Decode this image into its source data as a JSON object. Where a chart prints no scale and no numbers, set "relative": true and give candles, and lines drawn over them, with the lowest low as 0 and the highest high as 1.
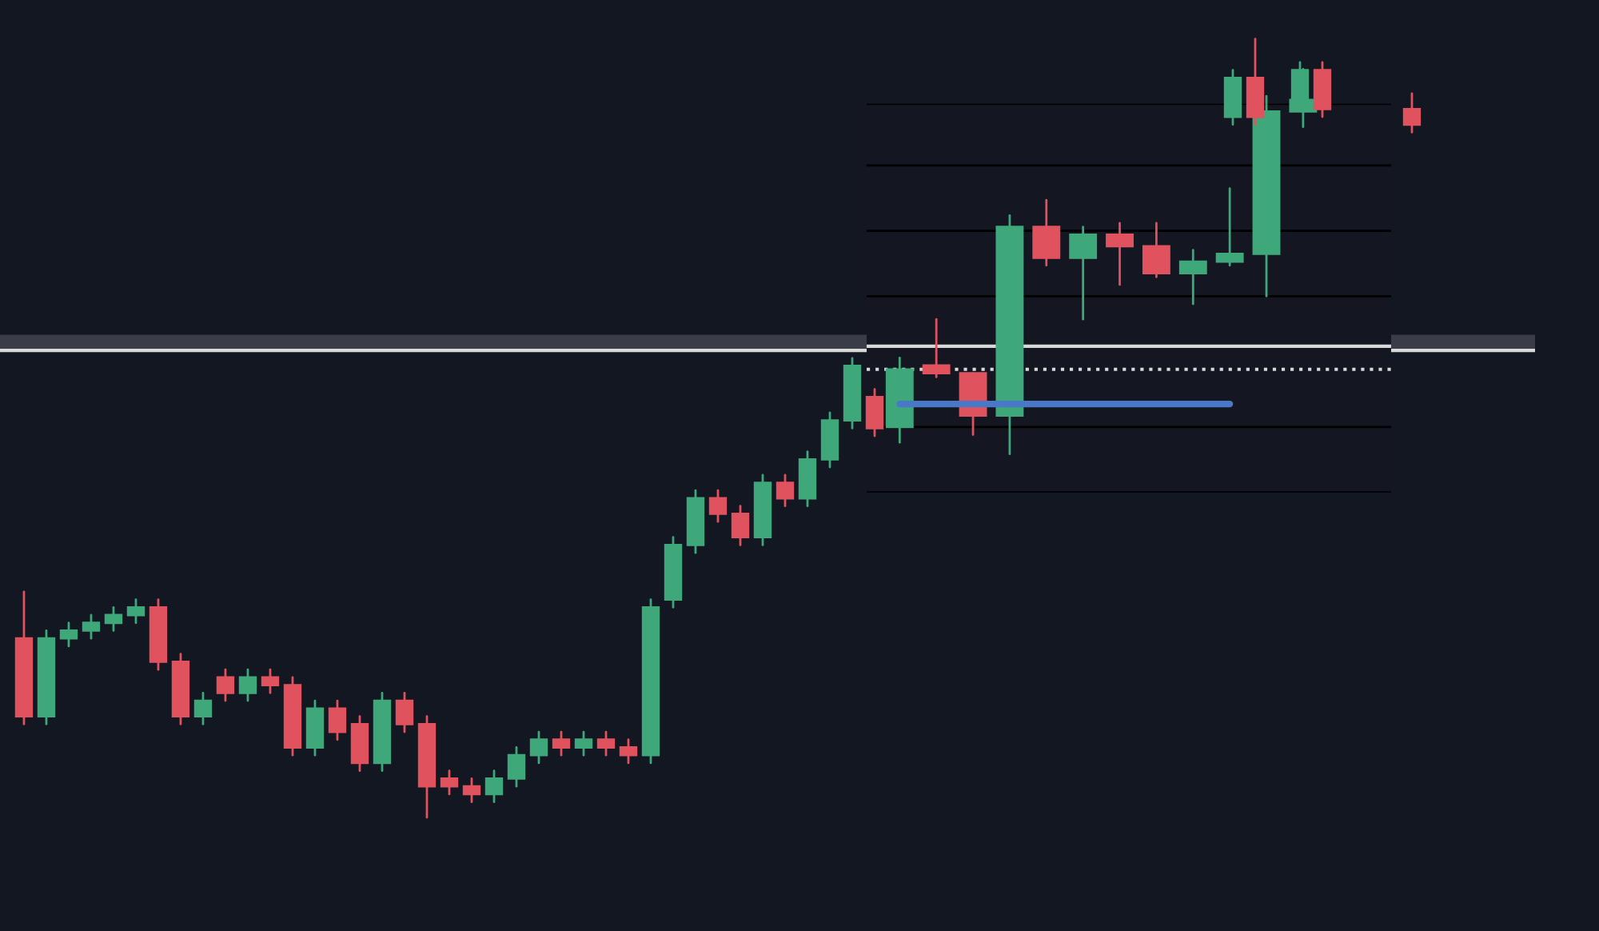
{
  "chart_data": [
    {
      "type": "candlestick",
      "relative": true,
      "grid": false,
      "legend": false,
      "categories": [
        null,
        null,
        null,
        null,
        null,
        null,
        null,
        null,
        null,
        null,
        null,
        null,
        null,
        null,
        null,
        null,
        null,
        null,
        null,
        null,
        null,
        null,
        null,
        null,
        null,
        null,
        null,
        null,
        null,
        null,
        null,
        null,
        null,
        null,
        null,
        null,
        null,
        null,
        null,
        null,
        null,
        null,
        null,
        null,
        null,
        null,
        null,
        null,
        null,
        null,
        null,
        null,
        null,
        null,
        null,
        null,
        null,
        null,
        null,
        null,
        null,
        null,
        null
      ],
      "ohlc": [
        [
          0.23,
          0.29,
          0.12,
          0.13
        ],
        [
          0.13,
          0.24,
          0.12,
          0.23
        ],
        [
          0.23,
          0.25,
          0.22,
          0.24
        ],
        [
          0.24,
          0.26,
          0.23,
          0.25
        ],
        [
          0.25,
          0.27,
          0.24,
          0.26
        ],
        [
          0.26,
          0.28,
          0.25,
          0.27
        ],
        [
          0.27,
          0.28,
          0.19,
          0.2
        ],
        [
          0.2,
          0.21,
          0.12,
          0.13
        ],
        [
          0.13,
          0.16,
          0.12,
          0.15
        ],
        [
          0.18,
          0.19,
          0.15,
          0.16
        ],
        [
          0.16,
          0.19,
          0.15,
          0.18
        ],
        [
          0.18,
          0.19,
          0.16,
          0.17
        ],
        [
          0.17,
          0.18,
          0.08,
          0.09
        ],
        [
          0.09,
          0.15,
          0.08,
          0.14
        ],
        [
          0.14,
          0.15,
          0.1,
          0.11
        ],
        [
          0.12,
          0.13,
          0.06,
          0.07
        ],
        [
          0.07,
          0.16,
          0.06,
          0.15
        ],
        [
          0.15,
          0.16,
          0.11,
          0.12
        ],
        [
          0.12,
          0.13,
          0.0,
          0.04
        ],
        [
          0.05,
          0.06,
          0.03,
          0.04
        ],
        [
          0.04,
          0.05,
          0.02,
          0.03
        ],
        [
          0.03,
          0.06,
          0.02,
          0.05
        ],
        [
          0.05,
          0.09,
          0.04,
          0.08
        ],
        [
          0.08,
          0.11,
          0.07,
          0.1
        ],
        [
          0.1,
          0.11,
          0.08,
          0.09
        ],
        [
          0.09,
          0.11,
          0.08,
          0.1
        ],
        [
          0.1,
          0.11,
          0.08,
          0.09
        ],
        [
          0.09,
          0.1,
          0.07,
          0.08
        ],
        [
          0.08,
          0.28,
          0.07,
          0.27
        ],
        [
          0.28,
          0.36,
          0.27,
          0.35
        ],
        [
          0.35,
          0.42,
          0.34,
          0.41
        ],
        [
          0.41,
          0.42,
          0.38,
          0.39
        ],
        [
          0.39,
          0.4,
          0.35,
          0.36
        ],
        [
          0.36,
          0.44,
          0.35,
          0.43
        ],
        [
          0.43,
          0.44,
          0.4,
          0.41
        ],
        [
          0.41,
          0.47,
          0.4,
          0.46
        ],
        [
          0.46,
          0.52,
          0.45,
          0.51
        ],
        [
          0.51,
          0.59,
          0.5,
          0.58
        ],
        [
          0.54,
          0.55,
          0.49,
          0.5
        ],
        null,
        null,
        null,
        null,
        null,
        null,
        null,
        null,
        null,
        null,
        null,
        null,
        null,
        null,
        null,
        [
          0.9,
          0.96,
          0.89,
          0.95
        ],
        [
          0.95,
          1.0,
          0.89,
          0.9
        ],
        null,
        [
          0.92,
          0.97,
          0.91,
          0.96
        ],
        [
          0.96,
          0.97,
          0.9,
          0.91
        ],
        null,
        null,
        null,
        [
          0.91,
          0.93,
          0.88,
          0.89
        ]
      ],
      "colors": [
        "#e0535e",
        "#3fa87a",
        "#3fa87a",
        "#3fa87a",
        "#3fa87a",
        "#3fa87a",
        "#e0535e",
        "#e0535e",
        "#3fa87a",
        "#e0535e",
        "#3fa87a",
        "#e0535e",
        "#e0535e",
        "#3fa87a",
        "#e0535e",
        "#e0535e",
        "#3fa87a",
        "#e0535e",
        "#e0535e",
        "#e0535e",
        "#e0535e",
        "#3fa87a",
        "#3fa87a",
        "#3fa87a",
        "#e0535e",
        "#3fa87a",
        "#e0535e",
        "#e0535e",
        "#3fa87a",
        "#3fa87a",
        "#3fa87a",
        "#e0535e",
        "#e0535e",
        "#3fa87a",
        "#e0535e",
        "#3fa87a",
        "#3fa87a",
        "#3fa87a",
        "#e0535e",
        null,
        null,
        null,
        null,
        null,
        null,
        null,
        null,
        null,
        null,
        null,
        null,
        null,
        null,
        null,
        "#3fa87a",
        "#e0535e",
        null,
        "#3fa87a",
        "#e0535e",
        null,
        null,
        null,
        "#e0535e"
      ],
      "ref_lines": [
        {
          "axis": "y",
          "value": 0.6,
          "color": "#d8d8d8",
          "line_style": "solid"
        }
      ],
      "bands": [
        {
          "axis": "y",
          "from": 0.6,
          "to": 0.62,
          "color": "#3a3d47"
        }
      ]
    },
    {
      "type": "candlestick",
      "relative": true,
      "grid": false,
      "legend": false,
      "categories": [
        null,
        null,
        null,
        null,
        null,
        null,
        null,
        null,
        null,
        null,
        null,
        null
      ],
      "ohlc": [
        [
          0.07,
          0.25,
          0.03,
          0.22
        ],
        [
          0.23,
          0.35,
          0.2,
          0.21
        ],
        [
          0.21,
          0.21,
          0.05,
          0.1
        ],
        [
          0.1,
          0.62,
          0.0,
          0.59
        ],
        [
          0.59,
          0.66,
          0.49,
          0.51
        ],
        [
          0.51,
          0.59,
          0.35,
          0.57
        ],
        [
          0.57,
          0.6,
          0.44,
          0.54
        ],
        [
          0.54,
          0.6,
          0.46,
          0.47
        ],
        [
          0.47,
          0.53,
          0.39,
          0.5
        ],
        [
          0.5,
          0.69,
          0.49,
          0.52
        ],
        [
          0.52,
          0.93,
          0.41,
          0.89
        ],
        [
          0.89,
          1.0,
          0.85,
          0.92
        ]
      ],
      "colors": [
        "#3fa87a",
        "#e0535e",
        "#e0535e",
        "#3fa87a",
        "#e0535e",
        "#3fa87a",
        "#e0535e",
        "#e0535e",
        "#3fa87a",
        "#3fa87a",
        "#3fa87a",
        "#3fa87a"
      ],
      "series": [
        {
          "type": "line",
          "color": "#4a78c8",
          "values": [
            0.13,
            0.13,
            0.13,
            0.13,
            0.13,
            0.13,
            0.13,
            0.13,
            0.13,
            0.13,
            null,
            null
          ]
        }
      ],
      "ref_lines": [
        {
          "axis": "y",
          "value": 0.91,
          "color": "#000000",
          "line_style": "solid"
        },
        {
          "axis": "y",
          "value": 0.75,
          "color": "#000000",
          "line_style": "solid"
        },
        {
          "axis": "y",
          "value": 0.58,
          "color": "#000000",
          "line_style": "solid"
        },
        {
          "axis": "y",
          "value": 0.41,
          "color": "#000000",
          "line_style": "solid"
        },
        {
          "axis": "y",
          "value": 0.07,
          "color": "#000000",
          "line_style": "solid"
        },
        {
          "axis": "y",
          "value": -0.1,
          "color": "#000000",
          "line_style": "solid"
        },
        {
          "axis": "y",
          "value": 0.28,
          "color": "#d8d8d8",
          "line_style": "solid"
        },
        {
          "axis": "y",
          "value": 0.22,
          "color": "#d8d8d8",
          "line_style": "dotted"
        }
      ]
    }
  ]
}
